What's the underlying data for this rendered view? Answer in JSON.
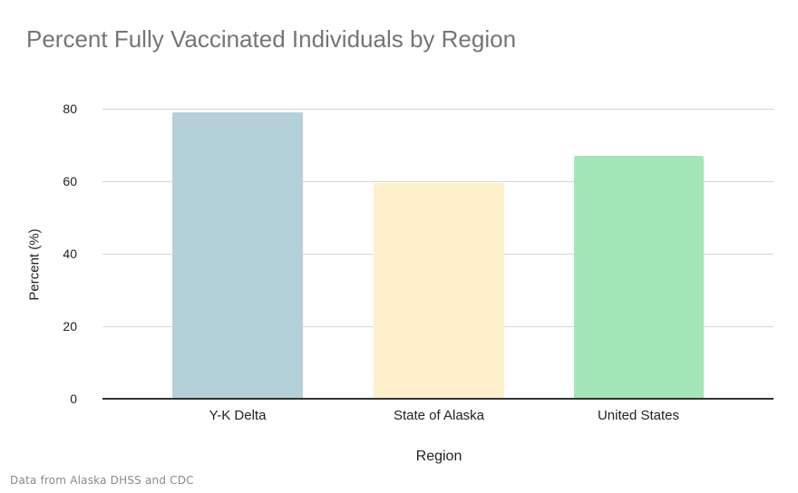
{
  "chart_data": {
    "type": "bar",
    "title": "Percent Fully Vaccinated Individuals by Region",
    "xlabel": "Region",
    "ylabel": "Percent (%)",
    "categories": [
      "Y-K Delta",
      "State of Alaska",
      "United States"
    ],
    "values": [
      79,
      59.5,
      67
    ],
    "colors": [
      "#b4d1d9",
      "#fff0cc",
      "#a4e6b6"
    ],
    "ylim": [
      0,
      80
    ],
    "yticks": [
      0,
      20,
      40,
      60,
      80
    ],
    "grid": true,
    "legend": "none",
    "footnote": "Data from Alaska DHSS and CDC"
  },
  "labels": {
    "title": "Percent Fully Vaccinated Individuals by Region",
    "xlabel": "Region",
    "ylabel": "Percent (%)",
    "footnote": "Data from Alaska DHSS and CDC",
    "yticks": [
      "0",
      "20",
      "40",
      "60",
      "80"
    ],
    "categories": [
      "Y-K Delta",
      "State of Alaska",
      "United States"
    ]
  }
}
